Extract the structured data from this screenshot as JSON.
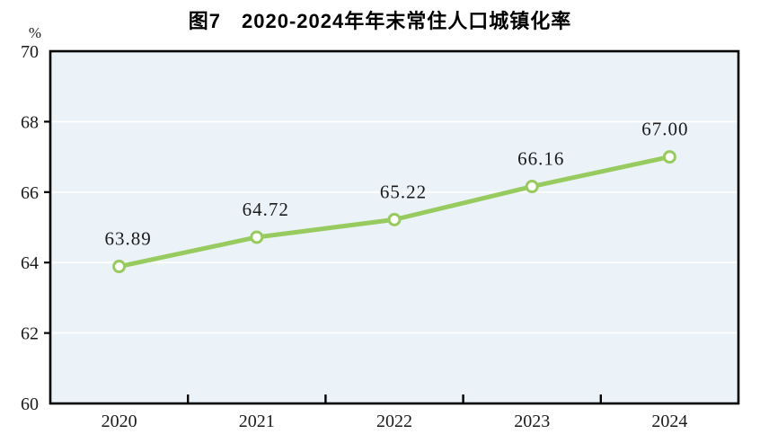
{
  "figure": {
    "title": "图7　2020-2024年年末常住人口城镇化率",
    "unit_label": "%"
  },
  "chart_data": {
    "type": "line",
    "title": "图7　2020-2024年年末常住人口城镇化率",
    "ylabel": "%",
    "xlabel": "",
    "categories": [
      "2020",
      "2021",
      "2022",
      "2023",
      "2024"
    ],
    "values": [
      63.89,
      64.72,
      65.22,
      66.16,
      67.0
    ],
    "point_labels": [
      "63.89",
      "64.72",
      "65.22",
      "66.16",
      "67.00"
    ],
    "ylim": [
      60,
      70
    ],
    "yticks": [
      60,
      62,
      64,
      66,
      68,
      70
    ],
    "grid": true,
    "legend": false,
    "colors": {
      "line": "#98CB5F",
      "marker_fill": "#FFFFFF",
      "plot_background": "#EBF2F8",
      "axis": "#000000",
      "gridline": "#FFFFFF",
      "text": "#000000"
    }
  }
}
